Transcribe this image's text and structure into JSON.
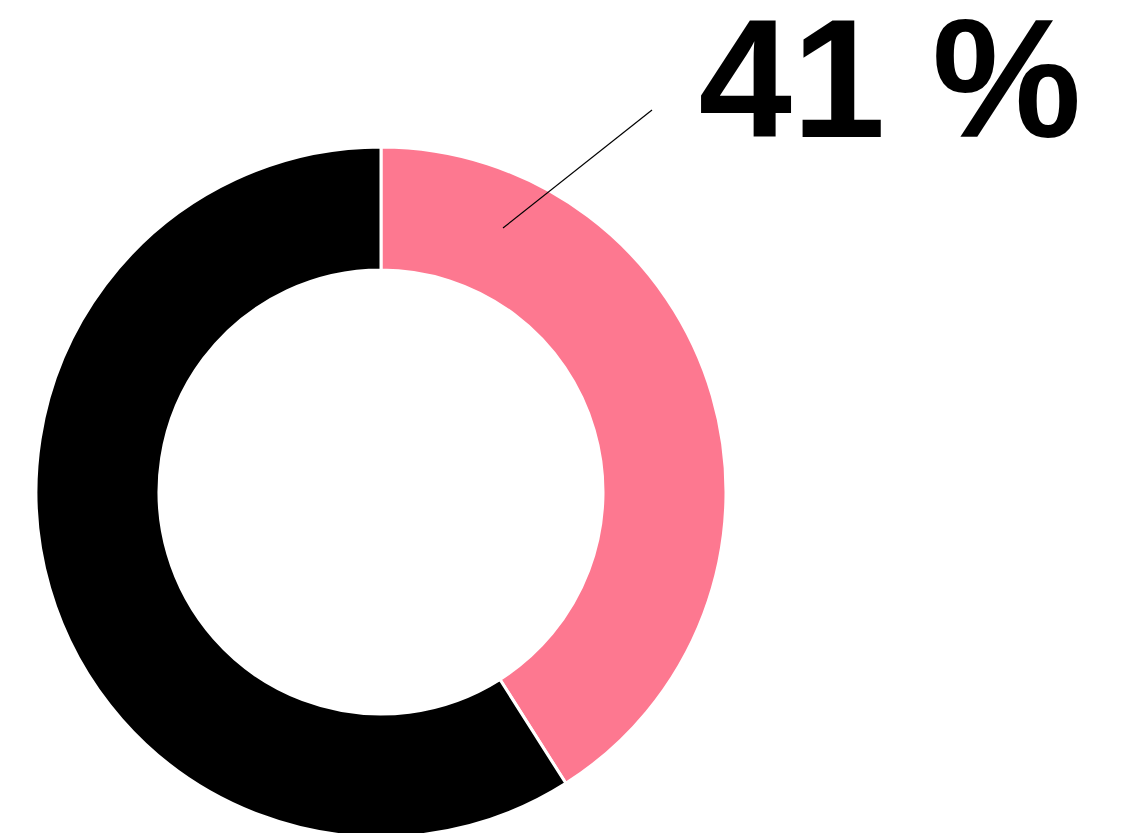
{
  "chart_data": {
    "type": "donut",
    "categories": [
      null,
      null
    ],
    "values": [
      41,
      59
    ],
    "colors": [
      "#fd7890",
      "#000000"
    ],
    "value_labels": [
      "41 %",
      null
    ]
  }
}
